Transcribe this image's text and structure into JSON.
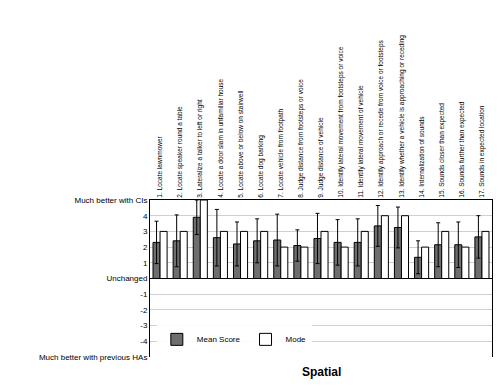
{
  "chart_data": {
    "type": "bar",
    "x_label": "Spatial",
    "categories": [
      "1. Locate lawnmower",
      "2. Locate speaker round a table",
      "3. Lateralize a talker to left or right",
      "4. Locate a door slam in unfamiliar house",
      "5. Locate above or below on stairwell",
      "6. Locate dog barking",
      "7. Locate vehicle from footpath",
      "8. Judge distance from footsteps or voice",
      "9. Judge distance of vehicle",
      "10. Identify lateral movement from footsteps or voice",
      "11. Identify lateral movement of vehicle",
      "12. Identify approach or recede from voice or footsteps",
      "13. Identify whether a vehicle is approaching or receding",
      "14. Internalization of sounds",
      "15. Sounds closer than expected",
      "16. Sounds further than expected",
      "17. Sounds in expected location"
    ],
    "series": [
      {
        "name": "Mean Score",
        "color": "#6e6e6e",
        "values": [
          2.3,
          2.4,
          3.9,
          2.6,
          2.2,
          2.4,
          2.45,
          2.1,
          2.55,
          2.3,
          2.3,
          3.35,
          3.25,
          1.35,
          2.15,
          2.15,
          2.65
        ],
        "errors": [
          1.35,
          1.65,
          1.1,
          1.8,
          1.4,
          1.4,
          1.65,
          1.0,
          1.6,
          1.45,
          1.5,
          1.3,
          1.3,
          1.05,
          1.4,
          1.45,
          1.35
        ]
      },
      {
        "name": "Mode",
        "color": "#ffffff",
        "values": [
          3,
          3,
          5,
          3,
          3,
          3,
          2,
          2,
          3,
          2,
          3,
          4,
          4,
          2,
          3,
          2,
          3
        ]
      }
    ],
    "ylim": [
      -5,
      5
    ],
    "yticks": [
      {
        "value": -5,
        "label": "Much better with previous HAs"
      },
      -4,
      -3,
      -2,
      -1,
      {
        "value": 0,
        "label": "Unchanged"
      },
      1,
      2,
      3,
      4,
      {
        "value": 5,
        "label": "Much better with CIs"
      }
    ],
    "grid": true,
    "legend": "lower left"
  }
}
